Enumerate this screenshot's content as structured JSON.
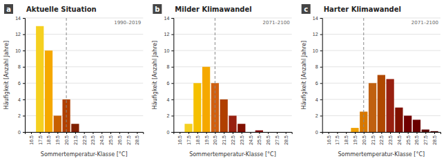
{
  "chart_data": [
    {
      "type": "bar",
      "title": "Aktuelle Situation",
      "label": "a",
      "annotation": "1990–2019",
      "x": [
        16.5,
        17.5,
        18.5,
        19.5,
        20.5,
        21.5,
        22.5,
        23.5,
        24.5,
        25.5,
        26.5,
        27.5,
        28.5
      ],
      "values": [
        0,
        13,
        10,
        2,
        4,
        1,
        0,
        0,
        0,
        0,
        0,
        0,
        0
      ],
      "colors": [
        "#f5d020",
        "#f5d020",
        "#f5a800",
        "#c86000",
        "#b04000",
        "#802000",
        "#600000",
        "#600000",
        "#600000",
        "#600000",
        "#600000",
        "#600000",
        "#600000"
      ],
      "reference_x": 20.5,
      "xlabel": "Sommertemperatur-Klasse [°C]",
      "ylabel": "Häufigkeit [Anzahl Jahre]",
      "xlim": [
        15.8,
        29.2
      ],
      "xticks": [
        16.5,
        17.5,
        18.5,
        19.5,
        20.5,
        21.5,
        22.5,
        23.5,
        24.5,
        25.5,
        26.5,
        27.5,
        28.5
      ],
      "ylim": [
        0,
        14
      ],
      "yticks": [
        0,
        2,
        4,
        6,
        8,
        10,
        12,
        14
      ],
      "grid": true
    },
    {
      "type": "bar",
      "title": "Milder Klimawandel",
      "label": "b",
      "annotation": "2071–2100",
      "x": [
        16.5,
        17.5,
        18.5,
        19.5,
        20.5,
        21.5,
        22.5,
        23.5,
        24.5,
        25.5,
        26.5,
        27.5,
        28.5
      ],
      "values": [
        0,
        1,
        6,
        8,
        6,
        4,
        2,
        1,
        0,
        0.2,
        0,
        0,
        0
      ],
      "colors": [
        "#f5e040",
        "#f5d020",
        "#f5c000",
        "#f5a800",
        "#d06010",
        "#b04000",
        "#982010",
        "#801000",
        "#700000",
        "#800000",
        "#600000",
        "#600000",
        "#600000"
      ],
      "reference_x": 20.5,
      "xlabel": "Sommertemperatur-Klasse [°C]",
      "ylabel": "Häufigkeit [Anzahl Jahre]",
      "xlim": [
        15.8,
        29.2
      ],
      "xticks": [
        16.5,
        17.5,
        18.5,
        19.5,
        20.5,
        21.5,
        22.5,
        23.5,
        24.5,
        25.5,
        26.5,
        27.5,
        28.5
      ],
      "ylim": [
        0,
        14
      ],
      "yticks": [
        0,
        2,
        4,
        6,
        8,
        10,
        12,
        14
      ],
      "grid": true
    },
    {
      "type": "bar",
      "title": "Harter Klimawandel",
      "label": "c",
      "annotation": "2071–2100",
      "x": [
        16.5,
        17.5,
        18.5,
        19.5,
        20.5,
        21.5,
        22.5,
        23.5,
        24.5,
        25.5,
        26.5,
        27.5,
        28.5
      ],
      "values": [
        0,
        0,
        0,
        0.5,
        2.5,
        6,
        7,
        6.5,
        3,
        2,
        1.5,
        0.3,
        0.1
      ],
      "colors": [
        "#f5e040",
        "#f5d020",
        "#f5c000",
        "#f0a000",
        "#d87800",
        "#c06010",
        "#b04800",
        "#982010",
        "#801000",
        "#700000",
        "#6a0000",
        "#5a0000",
        "#480000"
      ],
      "reference_x": 20.5,
      "xlabel": "Sommertemperatur-Klasse [°C]",
      "ylabel": "Häufigkeit [Anzahl Jahre]",
      "xlim": [
        15.8,
        29.2
      ],
      "xticks": [
        16.5,
        17.5,
        18.5,
        19.5,
        20.5,
        21.5,
        22.5,
        23.5,
        24.5,
        25.5,
        26.5,
        27.5,
        28.5
      ],
      "ylim": [
        0,
        14
      ],
      "yticks": [
        0,
        2,
        4,
        6,
        8,
        10,
        12,
        14
      ],
      "grid": true
    }
  ]
}
